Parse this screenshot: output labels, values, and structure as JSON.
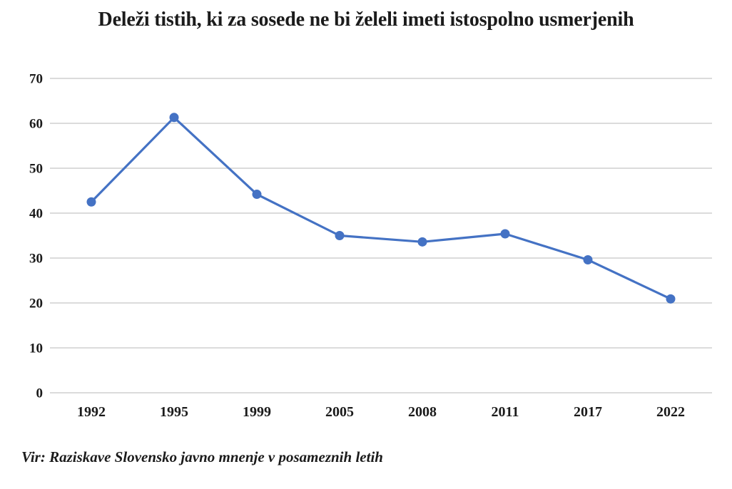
{
  "page": {
    "background": "#ffffff"
  },
  "chart_data": {
    "type": "line",
    "title": "Deleži tistih, ki za sosede ne bi želeli imeti istospolno usmerjenih",
    "source": "Vir: Raziskave Slovensko javno mnenje v posameznih letih",
    "categories": [
      "1992",
      "1995",
      "1999",
      "2005",
      "2008",
      "2011",
      "2017",
      "2022"
    ],
    "series": [
      {
        "name": "Delež tistih, ki za sosede ne bi želeli imeti istospolno usmerjenih (%)",
        "values": [
          42.5,
          61.3,
          44.2,
          35.0,
          33.6,
          35.4,
          29.6,
          20.9
        ]
      }
    ],
    "xlabel": "",
    "ylabel": "",
    "ylim": [
      0,
      70
    ],
    "ytick_step": 10,
    "grid": true,
    "legend_position": "none",
    "line_color": "#4472C4",
    "marker": "circle",
    "gridline_color": "#cfcfcf",
    "text_color": "#1b1b1b",
    "background": "#ffffff"
  }
}
